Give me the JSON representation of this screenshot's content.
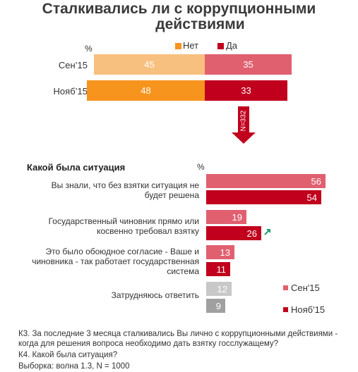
{
  "title_line1": "Сталкивались ли с коррупционными",
  "title_line2": "действиями",
  "top_chart": {
    "unit": "%",
    "legend": [
      {
        "label": "Нет",
        "color": "#f7941d"
      },
      {
        "label": "Да",
        "color": "#c0001d"
      }
    ],
    "rows": [
      {
        "label": "Сен’15",
        "net": "45",
        "da": "35",
        "net_color": "#f8c07f",
        "da_color": "#e06070"
      },
      {
        "label": "Нояб’15",
        "net": "48",
        "da": "33",
        "net_color": "#f7941d",
        "da_color": "#c0001d"
      }
    ]
  },
  "arrow_label": "N=332",
  "chart_data": [
    {
      "type": "bar",
      "title": "Сталкивались ли с коррупционными действиями",
      "categories": [
        "Сен’15",
        "Нояб’15"
      ],
      "series": [
        {
          "name": "Нет",
          "values": [
            45,
            48
          ]
        },
        {
          "name": "Да",
          "values": [
            35,
            33
          ]
        }
      ],
      "unit": "%"
    },
    {
      "type": "bar",
      "title": "Какой была ситуация",
      "categories": [
        "Вы знали, что без взятки ситуация не будет решена",
        "Государственный чиновник прямо или косвенно требовал взятку",
        "Это было обоюдное согласие - Ваше и чиновника - так работает государственная система",
        "Затрудняюсь ответить"
      ],
      "series": [
        {
          "name": "Сен'15",
          "values": [
            56,
            19,
            13,
            12
          ]
        },
        {
          "name": "Нояб'15",
          "values": [
            54,
            26,
            11,
            9
          ]
        }
      ],
      "unit": "%"
    }
  ],
  "bottom_chart": {
    "subtitle": "Какой  была  ситуация",
    "unit": "%",
    "categories": [
      {
        "line1": "Вы знали, что без взятки ситуация не",
        "line2": "будет решена",
        "line3": ""
      },
      {
        "line1": "Государственный чиновник прямо или",
        "line2": "косвенно требовал взятку",
        "line3": ""
      },
      {
        "line1": "Это было обоюдное согласие - Ваше и",
        "line2": "чиновника - так работает государственная",
        "line3": "система"
      },
      {
        "line1": "Затрудняюсь ответить",
        "line2": "",
        "line3": ""
      }
    ],
    "sep_values": [
      "56",
      "19",
      "13",
      "12"
    ],
    "nov_values": [
      "54",
      "26",
      "11",
      "9"
    ],
    "legend": [
      {
        "label": "Сен'15",
        "color": "#e06070"
      },
      {
        "label": "Нояб'15",
        "color": "#c0001d"
      }
    ],
    "colors": {
      "sep": "#e06070",
      "nov": "#c0001d",
      "sep_unsure": "#c8c8c8",
      "nov_unsure": "#a0a0a0",
      "increase_arrow": "#1a9e6e"
    }
  },
  "footnotes": {
    "line1": "К3. За последние 3 месяца сталкивались Вы лично с коррупционными действиями -",
    "line2": "когда для решения вопроса необходимо дать взятку госслужащему?",
    "line3": "К4. Какой была ситуация?",
    "line4": "Выборка: волна 1.3, N = 1000"
  }
}
